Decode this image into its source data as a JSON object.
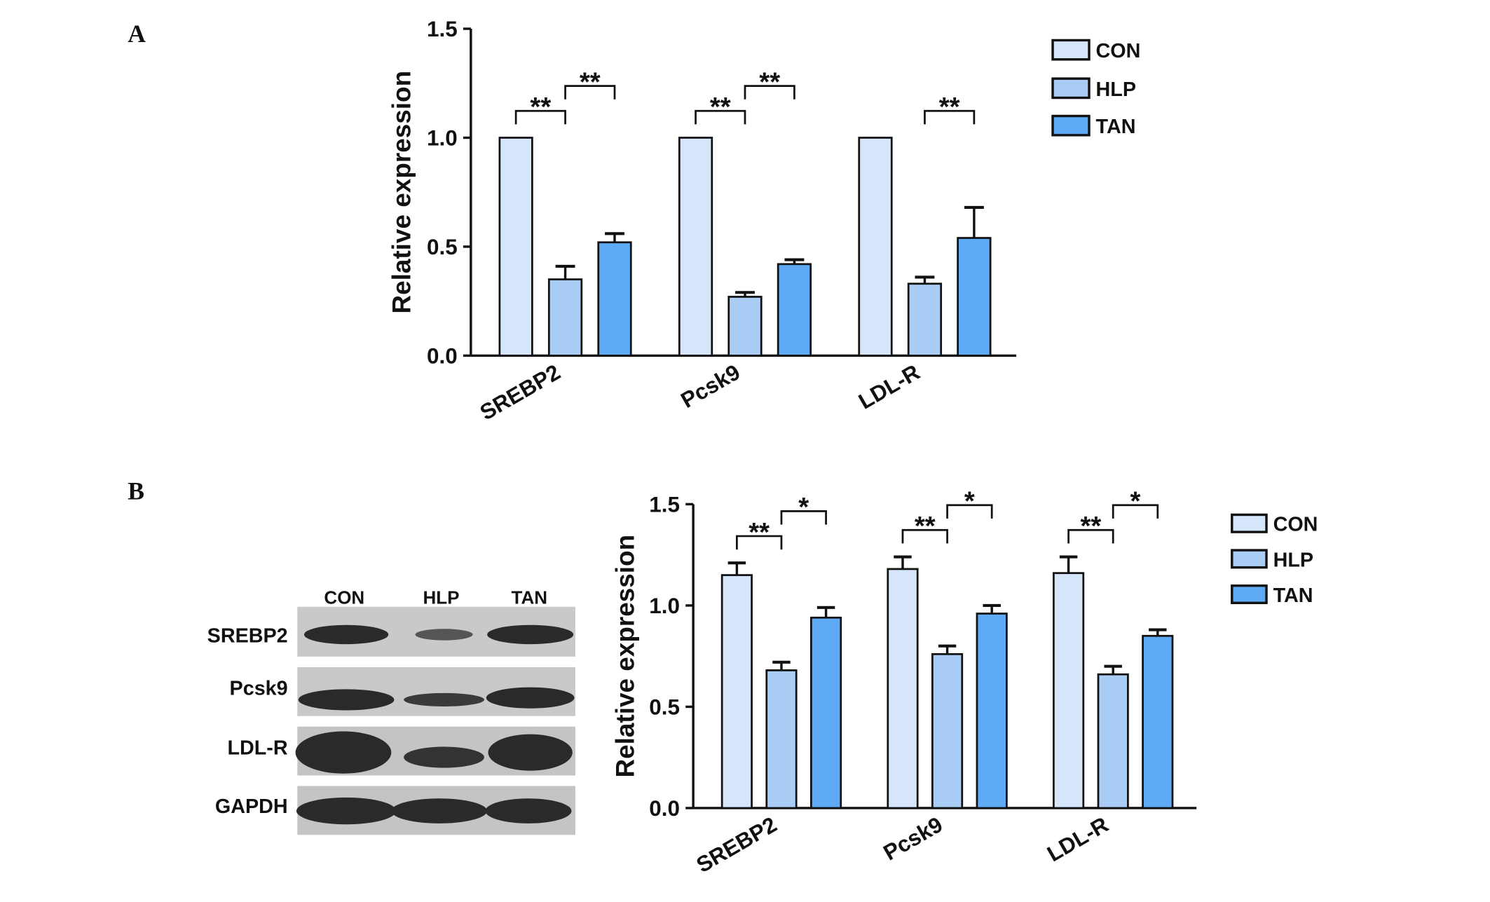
{
  "chart_data": [
    {
      "type": "bar",
      "label": "A",
      "ylabel": "Relative expression",
      "categories": [
        "SREBP2",
        "Pcsk9",
        "LDL-R"
      ],
      "series": [
        {
          "name": "CON",
          "color": "#d6e6fa",
          "values": [
            1,
            1,
            1
          ],
          "errors": [
            0,
            0,
            0
          ]
        },
        {
          "name": "HLP",
          "color": "#a9cdf5",
          "values": [
            0.35,
            0.27,
            0.33
          ],
          "errors": [
            0.06,
            0.02,
            0.03
          ]
        },
        {
          "name": "TAN",
          "color": "#5eaaf4",
          "values": [
            0.52,
            0.42,
            0.54
          ],
          "errors": [
            0.04,
            0.02,
            0.14
          ]
        }
      ],
      "ylim": [
        0,
        1.5
      ],
      "yticks": [
        {
          "value": 0,
          "label": "0.0"
        },
        0.5,
        {
          "value": 1,
          "label": "1.0"
        },
        1.5
      ],
      "legend": "right",
      "annotations": [
        {
          "text": "**",
          "category": "SREBP2",
          "between": [
            "CON",
            "HLP"
          ]
        },
        {
          "text": "**",
          "category": "SREBP2",
          "between": [
            "HLP",
            "TAN"
          ]
        },
        {
          "text": "**",
          "category": "Pcsk9",
          "between": [
            "CON",
            "HLP"
          ]
        },
        {
          "text": "**",
          "category": "Pcsk9",
          "between": [
            "HLP",
            "TAN"
          ]
        },
        {
          "text": "**",
          "category": "LDL-R",
          "between": [
            "HLP",
            "TAN"
          ]
        }
      ]
    },
    {
      "type": "bar",
      "label": "B",
      "ylabel": "Relative expression",
      "categories": [
        "SREBP2",
        "Pcsk9",
        "LDL-R"
      ],
      "series": [
        {
          "name": "CON",
          "color": "#d6e6fa",
          "values": [
            1.15,
            1.18,
            1.16
          ],
          "errors": [
            0.06,
            0.06,
            0.08
          ]
        },
        {
          "name": "HLP",
          "color": "#a9cdf5",
          "values": [
            0.68,
            0.76,
            0.66
          ],
          "errors": [
            0.04,
            0.04,
            0.04
          ]
        },
        {
          "name": "TAN",
          "color": "#5eaaf4",
          "values": [
            0.94,
            0.96,
            0.85
          ],
          "errors": [
            0.05,
            0.04,
            0.03
          ]
        }
      ],
      "ylim": [
        0,
        1.5
      ],
      "yticks": [
        {
          "value": 0,
          "label": "0.0"
        },
        0.5,
        {
          "value": 1,
          "label": "1.0"
        },
        1.5
      ],
      "legend": "right",
      "annotations": [
        {
          "text": "**",
          "category": "SREBP2",
          "between": [
            "CON",
            "HLP"
          ]
        },
        {
          "text": "*",
          "category": "SREBP2",
          "between": [
            "HLP",
            "TAN"
          ]
        },
        {
          "text": "**",
          "category": "Pcsk9",
          "between": [
            "CON",
            "HLP"
          ]
        },
        {
          "text": "*",
          "category": "Pcsk9",
          "between": [
            "HLP",
            "TAN"
          ]
        },
        {
          "text": "**",
          "category": "LDL-R",
          "between": [
            "CON",
            "HLP"
          ]
        },
        {
          "text": "*",
          "category": "LDL-R",
          "between": [
            "HLP",
            "TAN"
          ]
        }
      ]
    }
  ],
  "blot": {
    "lanes": [
      "CON",
      "HLP",
      "TAN"
    ],
    "rows": [
      "SREBP2",
      "Pcsk9",
      "LDL-R",
      "GAPDH"
    ]
  }
}
